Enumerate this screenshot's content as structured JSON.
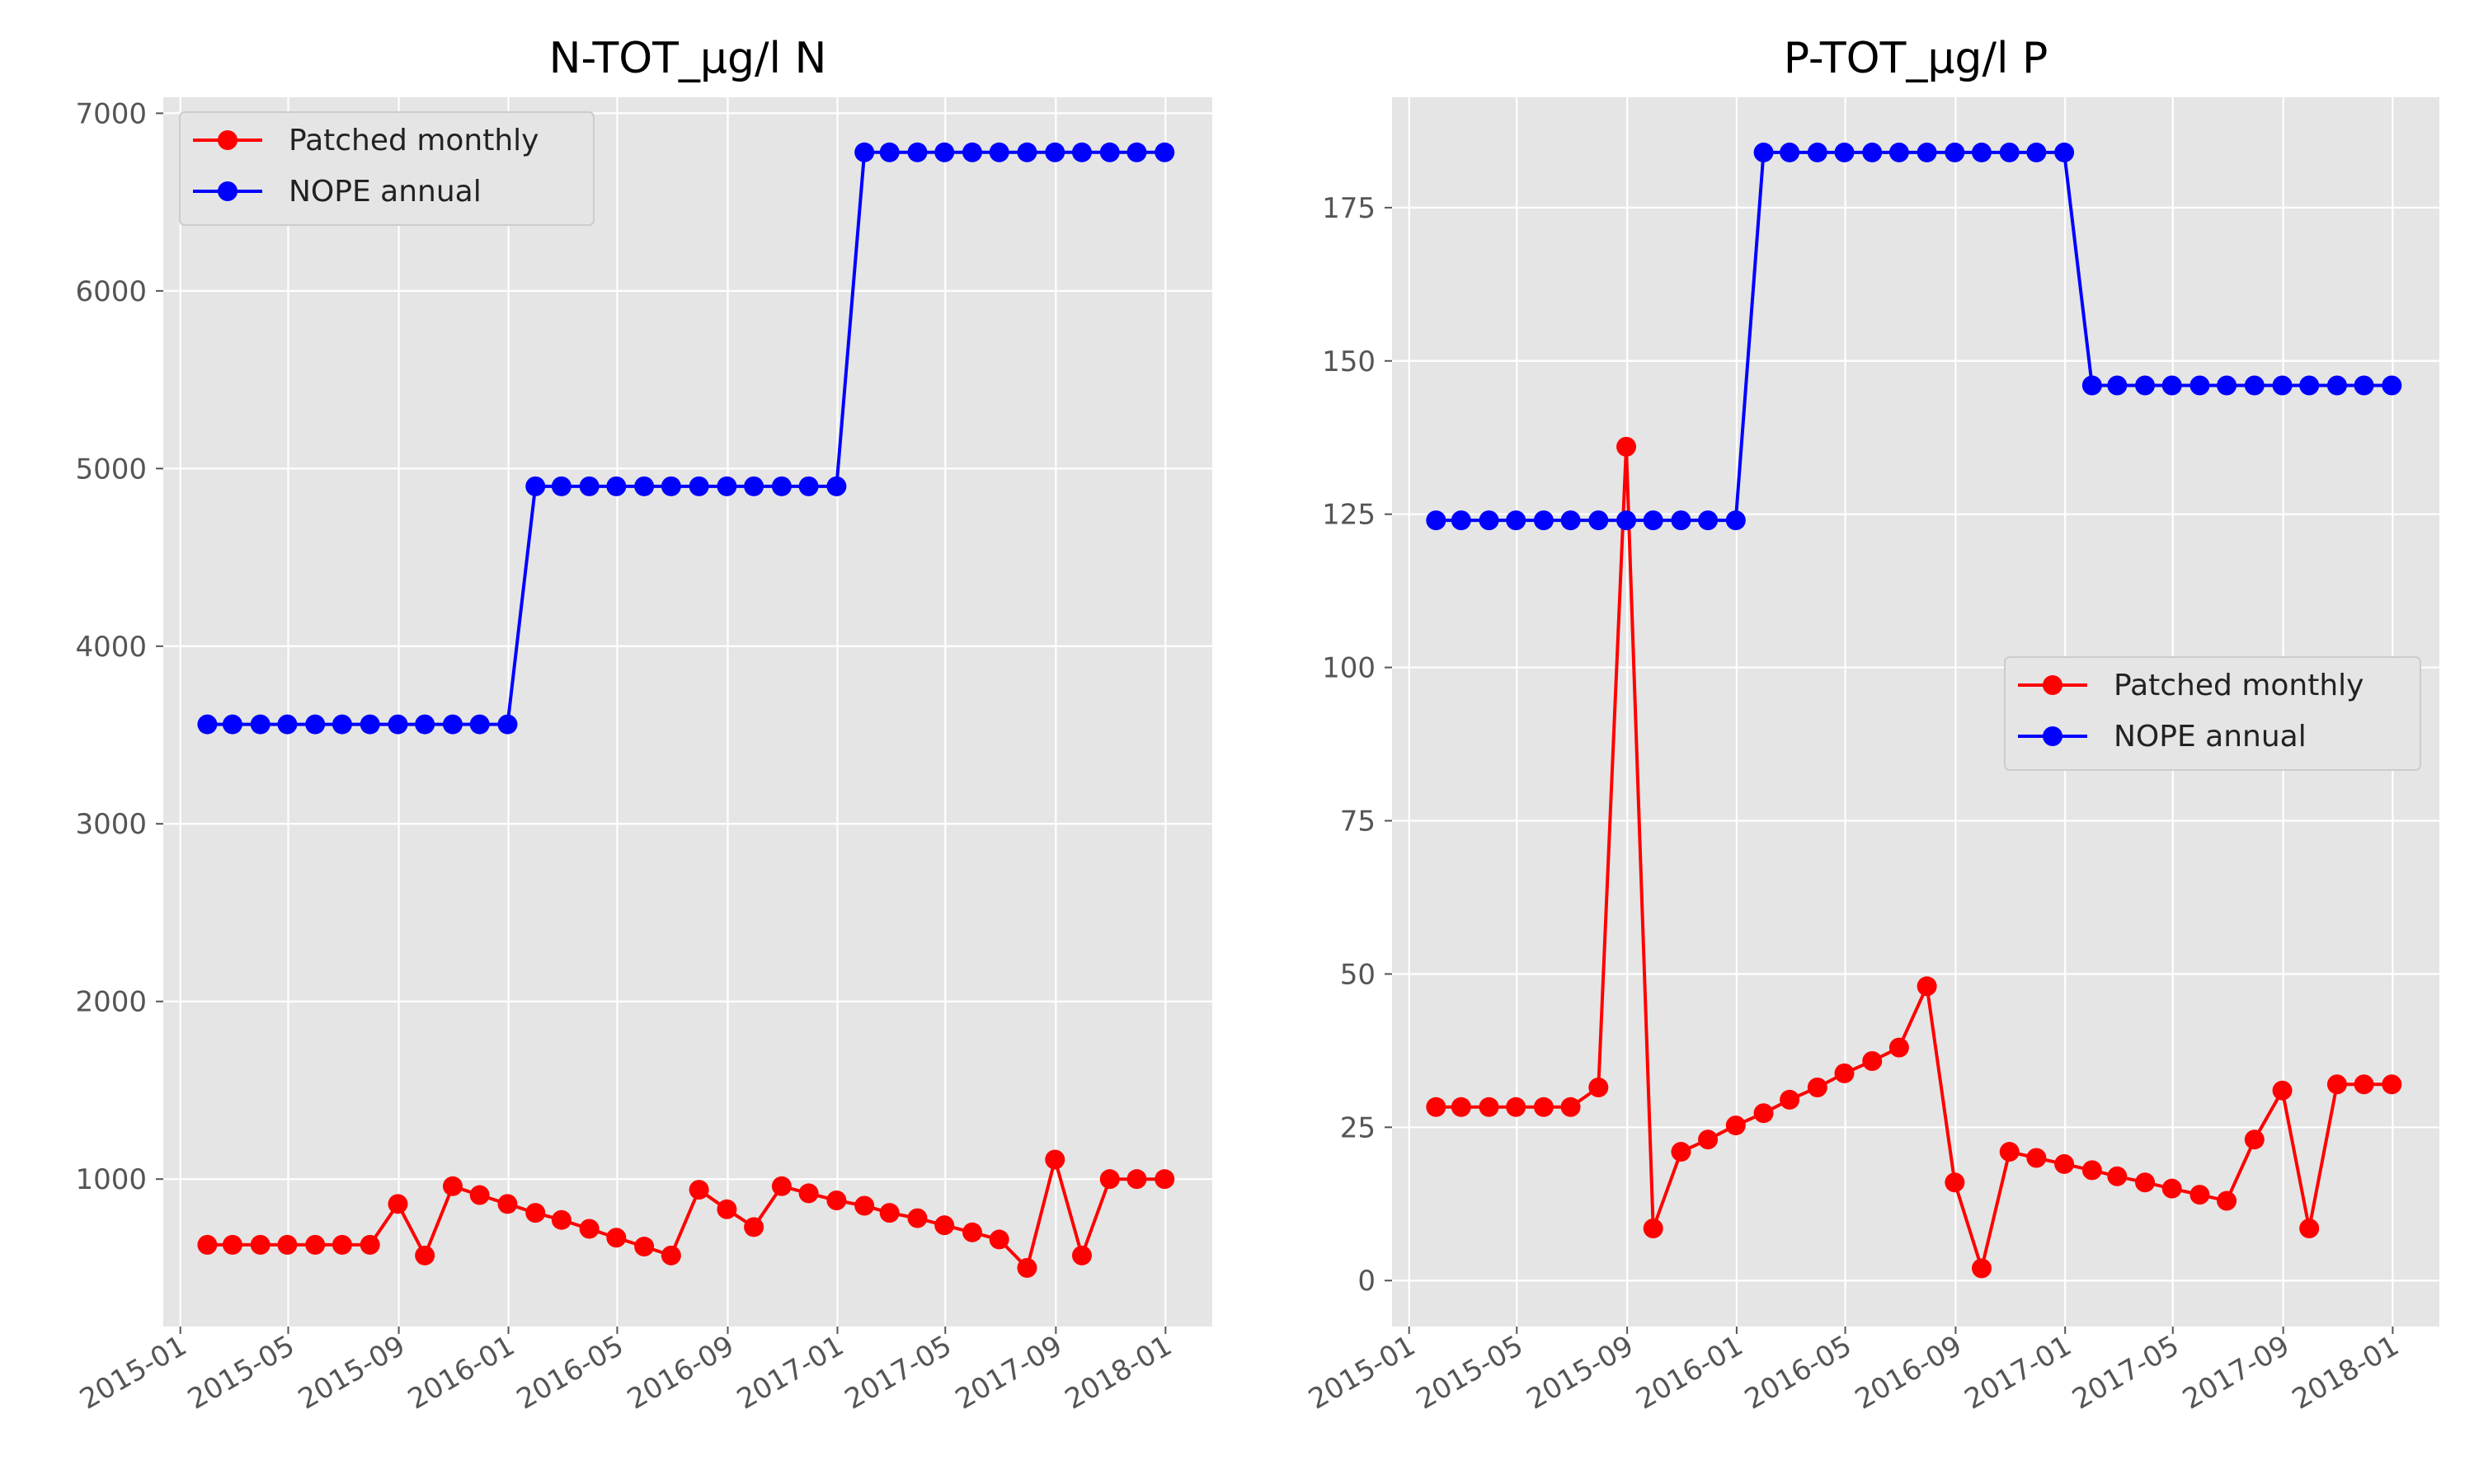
{
  "chart_data": [
    {
      "type": "line",
      "title": "N-TOT_µg/l N",
      "xlabel": "",
      "ylabel": "",
      "ylim": [
        170,
        7090
      ],
      "xlim": [
        "2014-12-13",
        "2018-02-22"
      ],
      "yticks": [
        1000,
        2000,
        3000,
        4000,
        5000,
        6000,
        7000
      ],
      "ytick_labels": [
        "1000",
        "2000",
        "3000",
        "4000",
        "5000",
        "6000",
        "7000"
      ],
      "xticks": [
        "2015-01-01",
        "2015-05-01",
        "2015-09-01",
        "2016-01-01",
        "2016-05-01",
        "2016-09-01",
        "2017-01-01",
        "2017-05-01",
        "2017-09-01",
        "2018-01-01"
      ],
      "xtick_labels": [
        "2015-01",
        "2015-05",
        "2015-09",
        "2016-01",
        "2016-05",
        "2016-09",
        "2017-01",
        "2017-05",
        "2017-09",
        "2018-01"
      ],
      "grid": true,
      "legend_position": "upper-left",
      "x": [
        "2015-01-31",
        "2015-02-28",
        "2015-03-31",
        "2015-04-30",
        "2015-05-31",
        "2015-06-30",
        "2015-07-31",
        "2015-08-31",
        "2015-09-30",
        "2015-10-31",
        "2015-11-30",
        "2015-12-31",
        "2016-01-31",
        "2016-02-29",
        "2016-03-31",
        "2016-04-30",
        "2016-05-31",
        "2016-06-30",
        "2016-07-31",
        "2016-08-31",
        "2016-09-30",
        "2016-10-31",
        "2016-11-30",
        "2016-12-31",
        "2017-01-31",
        "2017-02-28",
        "2017-03-31",
        "2017-04-30",
        "2017-05-31",
        "2017-06-30",
        "2017-07-31",
        "2017-08-31",
        "2017-09-30",
        "2017-10-31",
        "2017-11-30",
        "2017-12-31"
      ],
      "series": [
        {
          "name": "Patched monthly",
          "color": "#ff0000",
          "values": [
            630,
            630,
            630,
            630,
            630,
            630,
            630,
            860,
            570,
            960,
            910,
            860,
            810,
            770,
            720,
            670,
            620,
            570,
            940,
            830,
            730,
            960,
            920,
            880,
            850,
            810,
            780,
            740,
            700,
            660,
            500,
            1110,
            570,
            1000,
            1000,
            1000
          ]
        },
        {
          "name": "NOPE annual",
          "color": "#0000ff",
          "values": [
            3560,
            3560,
            3560,
            3560,
            3560,
            3560,
            3560,
            3560,
            3560,
            3560,
            3560,
            3560,
            4900,
            4900,
            4900,
            4900,
            4900,
            4900,
            4900,
            4900,
            4900,
            4900,
            4900,
            4900,
            6780,
            6780,
            6780,
            6780,
            6780,
            6780,
            6780,
            6780,
            6780,
            6780,
            6780,
            6780
          ]
        }
      ]
    },
    {
      "type": "line",
      "title": "P-TOT_µg/l P",
      "xlabel": "",
      "ylabel": "",
      "ylim": [
        -7.5,
        193
      ],
      "xlim": [
        "2014-12-13",
        "2018-02-22"
      ],
      "yticks": [
        0,
        25,
        50,
        75,
        100,
        125,
        150,
        175
      ],
      "ytick_labels": [
        "0",
        "25",
        "50",
        "75",
        "100",
        "125",
        "150",
        "175"
      ],
      "xticks": [
        "2015-01-01",
        "2015-05-01",
        "2015-09-01",
        "2016-01-01",
        "2016-05-01",
        "2016-09-01",
        "2017-01-01",
        "2017-05-01",
        "2017-09-01",
        "2018-01-01"
      ],
      "xtick_labels": [
        "2015-01",
        "2015-05",
        "2015-09",
        "2016-01",
        "2016-05",
        "2016-09",
        "2017-01",
        "2017-05",
        "2017-09",
        "2018-01"
      ],
      "grid": true,
      "legend_position": "center-right",
      "x": [
        "2015-01-31",
        "2015-02-28",
        "2015-03-31",
        "2015-04-30",
        "2015-05-31",
        "2015-06-30",
        "2015-07-31",
        "2015-08-31",
        "2015-09-30",
        "2015-10-31",
        "2015-11-30",
        "2015-12-31",
        "2016-01-31",
        "2016-02-29",
        "2016-03-31",
        "2016-04-30",
        "2016-05-31",
        "2016-06-30",
        "2016-07-31",
        "2016-08-31",
        "2016-09-30",
        "2016-10-31",
        "2016-11-30",
        "2016-12-31",
        "2017-01-31",
        "2017-02-28",
        "2017-03-31",
        "2017-04-30",
        "2017-05-31",
        "2017-06-30",
        "2017-07-31",
        "2017-08-31",
        "2017-09-30",
        "2017-10-31",
        "2017-11-30",
        "2017-12-31"
      ],
      "series": [
        {
          "name": "Patched monthly",
          "color": "#ff0000",
          "values": [
            28.3,
            28.3,
            28.3,
            28.3,
            28.3,
            28.3,
            31.5,
            136,
            8.5,
            21,
            23,
            25.3,
            27.3,
            29.5,
            31.5,
            33.8,
            35.8,
            38,
            48,
            16,
            2,
            21,
            20,
            19,
            18,
            17,
            16,
            15,
            14,
            13,
            23,
            31,
            8.5,
            32,
            32,
            32
          ]
        },
        {
          "name": "NOPE annual",
          "color": "#0000ff",
          "values": [
            124,
            124,
            124,
            124,
            124,
            124,
            124,
            124,
            124,
            124,
            124,
            124,
            184,
            184,
            184,
            184,
            184,
            184,
            184,
            184,
            184,
            184,
            184,
            184,
            146,
            146,
            146,
            146,
            146,
            146,
            146,
            146,
            146,
            146,
            146,
            146
          ]
        }
      ]
    }
  ]
}
